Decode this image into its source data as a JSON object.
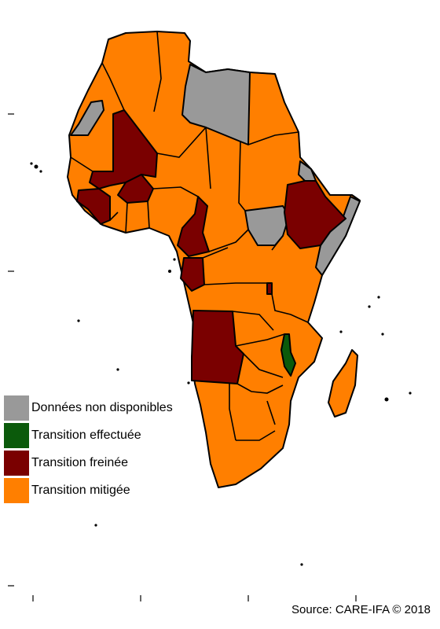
{
  "colors": {
    "na": "#999999",
    "done": "#0b5a0b",
    "slowed": "#7a0000",
    "mitigated": "#ff7f00",
    "border": "#000000"
  },
  "legend": [
    {
      "key": "na",
      "label": "Données non disponibles"
    },
    {
      "key": "done",
      "label": "Transition effectuée"
    },
    {
      "key": "slowed",
      "label": "Transition freinée"
    },
    {
      "key": "mitigated",
      "label": "Transition mitigée"
    }
  ],
  "source": "Source: CARE-IFA © 2018"
}
